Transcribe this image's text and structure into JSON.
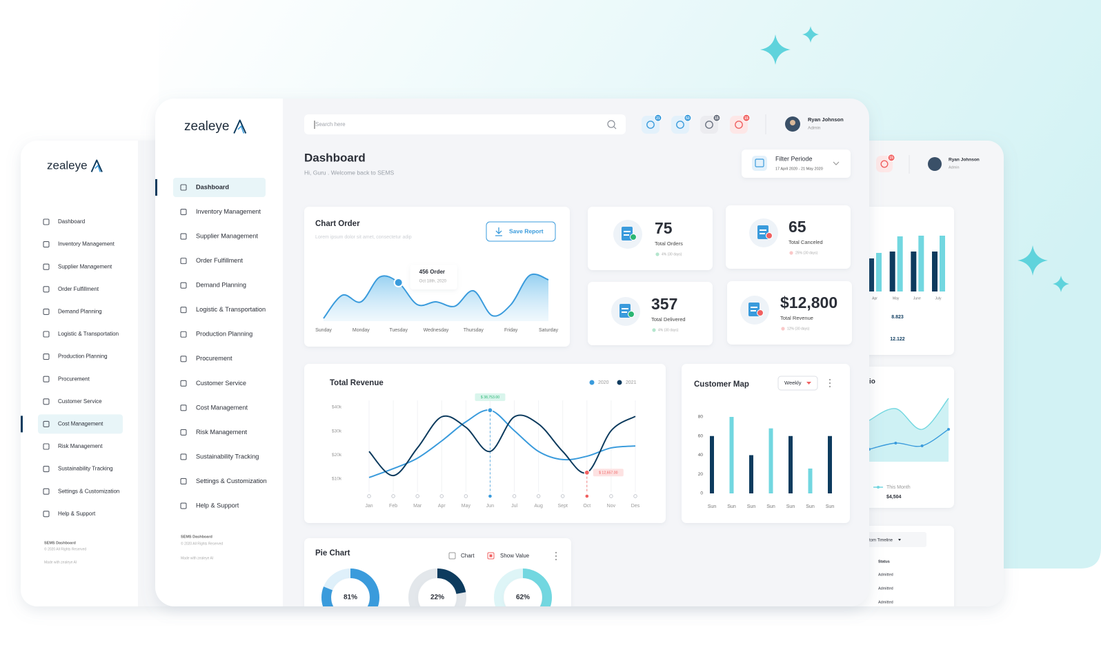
{
  "logo": "zealeye",
  "sidebar": {
    "items": [
      "Dashboard",
      "Inventory Management",
      "Supplier Management",
      "Order Fulfillment",
      "Demand Planning",
      "Logistic & Transportation",
      "Production Planning",
      "Procurement",
      "Customer Service",
      "Cost Management",
      "Risk Management",
      "Sustainability Tracking",
      "Settings & Customization",
      "Help & Support"
    ],
    "footer": [
      "SEMS Dashboard",
      "© 2020 All Rights Reserved",
      "Made with zealeye AI"
    ]
  },
  "header": {
    "search": "Search here",
    "notifications": [
      {
        "count": 21,
        "color": "#3a9bdc",
        "bg": "#e3f1fb"
      },
      {
        "count": 53,
        "color": "#3a9bdc",
        "bg": "#e3f1fb"
      },
      {
        "count": 15,
        "color": "#6b7280",
        "bg": "#ececf0"
      },
      {
        "count": 15,
        "color": "#f06060",
        "bg": "#fde7e7"
      }
    ],
    "user": {
      "name": "Ryan Johnson",
      "role": "Admin"
    }
  },
  "page": {
    "title": "Dashboard",
    "greeting": "Hi, Guru . Welcome back  to SEMS",
    "filter": {
      "label": "Filter Periode",
      "range": "17 April 2020 - 21 May 2020"
    }
  },
  "stats": [
    {
      "value": 75,
      "label": "Total Orders",
      "change": "4% (30 days)",
      "trend": "up"
    },
    {
      "value": 65,
      "label": "Total Canceled",
      "change": "25% (30 days)",
      "trend": "down"
    },
    {
      "value": 357,
      "label": "Total Delivered",
      "change": "4% (30 days)",
      "trend": "up"
    },
    {
      "value": "$12,800",
      "label": "Total Revenue",
      "change": "12% (30 days)",
      "trend": "down"
    }
  ],
  "back_panel": {
    "bar_stats": [
      "8.823",
      "12.122"
    ],
    "table": {
      "title": "tom Timeline",
      "header": "Status",
      "rows": [
        "Admitted",
        "Admitted",
        "Admitted"
      ]
    }
  },
  "chart_data": [
    {
      "type": "area",
      "title": "Chart Order",
      "subtitle": "Lorem ipsum dolor sit amet, consectetur adip",
      "button": "Save Report",
      "x": [
        0,
        0.5,
        1,
        1.5,
        2,
        2.5,
        3,
        3.5,
        4,
        4.5,
        5,
        5.5,
        6
      ],
      "values": [
        10,
        52,
        40,
        85,
        75,
        35,
        40,
        32,
        60,
        15,
        35,
        88,
        80
      ],
      "xlim": [
        0,
        6
      ],
      "ylim": [
        0,
        100
      ],
      "xticks": [
        {
          "value": 0,
          "label": "Sunday"
        },
        {
          "value": 1,
          "label": "Monday"
        },
        {
          "value": 2,
          "label": "Tuesday"
        },
        {
          "value": 3,
          "label": "Wednesday"
        },
        {
          "value": 4,
          "label": "Thursday"
        },
        {
          "value": 5,
          "label": "Friday"
        },
        {
          "value": 6,
          "label": "Saturday"
        }
      ],
      "color": "#3a9bdc",
      "tooltip": {
        "index": 4,
        "label": "456 Order",
        "date": "Oct 18th, 2020"
      }
    },
    {
      "type": "line",
      "title": "Total Revenue",
      "categories": [
        "Jan",
        "Feb",
        "Mar",
        "Apr",
        "May",
        "Jun",
        "Jul",
        "Aug",
        "Sept",
        "Oct",
        "Nov",
        "Des"
      ],
      "series": [
        {
          "name": "2020",
          "color": "#3a9bdc",
          "values": [
            10600,
            14300,
            18700,
            25900,
            33900,
            38753,
            30200,
            21500,
            18100,
            19500,
            23000,
            23800
          ]
        },
        {
          "name": "2021",
          "color": "#0d3b5e",
          "values": [
            21500,
            11400,
            23000,
            36000,
            31600,
            21500,
            36000,
            33000,
            21500,
            12657,
            30200,
            36200
          ]
        }
      ],
      "ylim": [
        10000,
        40000
      ],
      "yticks": [
        {
          "value": 10000,
          "label": "$10k"
        },
        {
          "value": 20000,
          "label": "$20k"
        },
        {
          "value": 30000,
          "label": "$30k"
        },
        {
          "value": 40000,
          "label": "$40k"
        }
      ],
      "annotations": [
        {
          "series": 0,
          "index": 5,
          "label": "$ 38,753.00",
          "color": "#2bb673",
          "bg": "#d9f5ec"
        },
        {
          "series": 1,
          "index": 9,
          "label": "$ 12,657.00",
          "color": "#f06060",
          "bg": "#fde2e2"
        }
      ]
    },
    {
      "type": "bar",
      "title": "Customer Map",
      "filter": "Weekly",
      "categories": [
        "Sun",
        "Sun",
        "Sun",
        "Sun",
        "Sun",
        "Sun",
        "Sun"
      ],
      "values": [
        60,
        80,
        40,
        68,
        60,
        26,
        60
      ],
      "colors": [
        "#0d3b5e",
        "#72d7e0",
        "#0d3b5e",
        "#72d7e0",
        "#0d3b5e",
        "#72d7e0",
        "#0d3b5e"
      ],
      "ylim": [
        0,
        80
      ],
      "yticks": [
        0,
        20,
        40,
        60,
        80
      ]
    },
    {
      "type": "pie",
      "title": "Pie Chart",
      "options": [
        "Chart",
        "Show Value"
      ],
      "values": [
        81,
        22,
        62
      ],
      "value_labels": [
        "81%",
        "22%",
        "62%"
      ],
      "colors": [
        "#3a9bdc",
        "#0d3b5e",
        "#72d7e0"
      ],
      "track_colors": [
        "#dff0fa",
        "#e3e7eb",
        "#def5f7"
      ]
    },
    {
      "type": "bar",
      "categories": [
        "Apr",
        "May",
        "June",
        "July"
      ],
      "series": [
        {
          "color": "#0d3b5e",
          "values": [
            48,
            58,
            58,
            58
          ]
        },
        {
          "color": "#72d7e0",
          "values": [
            56,
            80,
            81,
            81
          ]
        }
      ],
      "ylim": [
        0,
        100
      ]
    },
    {
      "type": "line",
      "title": "io",
      "legend": "This Month",
      "legend_value": "$4,504",
      "series": [
        {
          "color": "#72d7e0",
          "fill": true,
          "values": [
            60,
            77,
            47,
            92
          ]
        },
        {
          "color": "#3a9bdc",
          "dots": true,
          "values": [
            18,
            27,
            23,
            47
          ]
        }
      ],
      "ylim": [
        0,
        100
      ]
    }
  ]
}
